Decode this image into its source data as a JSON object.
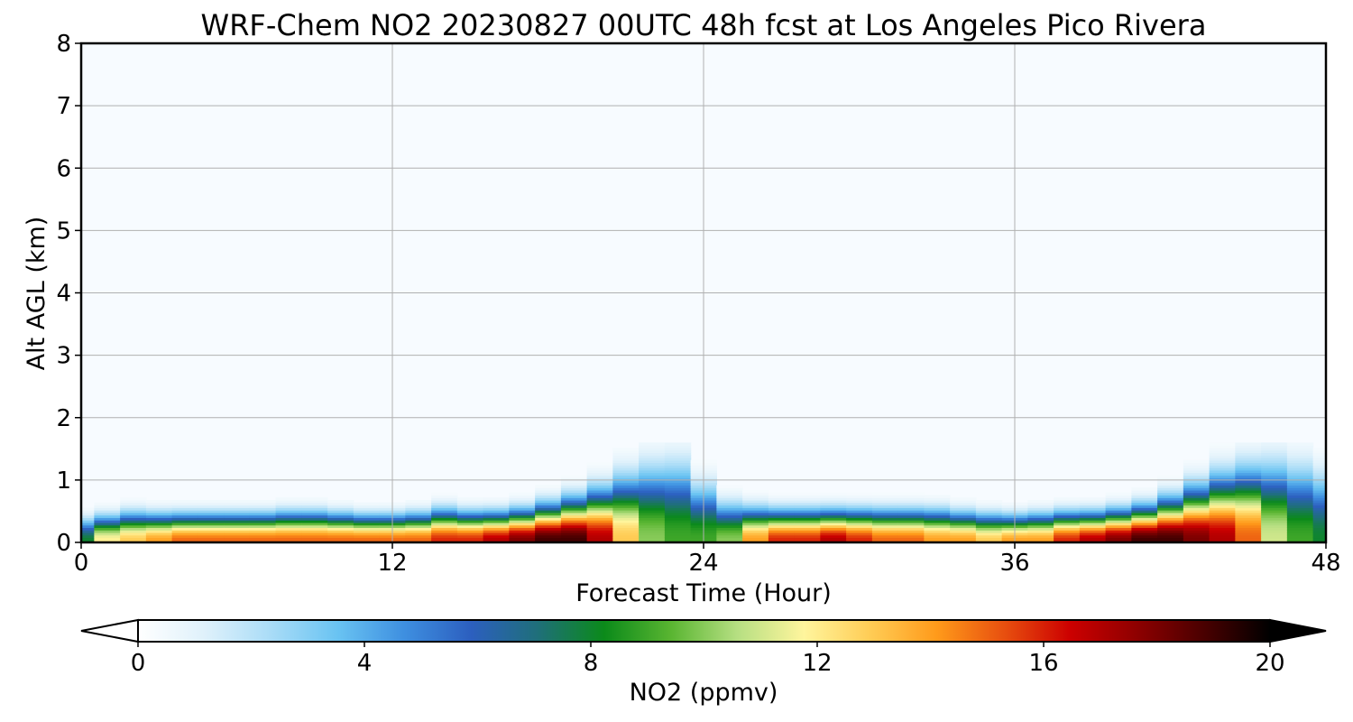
{
  "chart_data": {
    "type": "heatmap",
    "title": "WRF-Chem NO2  20230827 00UTC 48h fcst at Los Angeles Pico Rivera",
    "xlabel": "Forecast Time (Hour)",
    "ylabel": "Alt AGL (km)",
    "xlim": [
      0,
      48
    ],
    "ylim": [
      0,
      8
    ],
    "x_ticks": [
      "0",
      "12",
      "24",
      "36",
      "48"
    ],
    "y_ticks": [
      "0",
      "1",
      "2",
      "3",
      "4",
      "5",
      "6",
      "7",
      "8"
    ],
    "grid": true,
    "colorbar": {
      "label": "NO2  (ppmv)",
      "ticks": [
        "0",
        "4",
        "8",
        "12",
        "16",
        "20"
      ],
      "range": [
        0,
        20
      ],
      "extend": "both",
      "colors": [
        "#ffffff",
        "#dff1fb",
        "#a9dcf7",
        "#69c3f2",
        "#3e8fe0",
        "#2c5fbf",
        "#1f6f7a",
        "#0b8a1a",
        "#59b531",
        "#b6df82",
        "#fff59d",
        "#ffcc55",
        "#ff9a1a",
        "#e8500f",
        "#cc0000",
        "#8e0000",
        "#4a0000",
        "#000000"
      ],
      "over_color": "#000000",
      "under_color": "#ffffff"
    },
    "background_color": "#f7fbff",
    "hours": [
      0,
      1,
      2,
      3,
      4,
      5,
      6,
      7,
      8,
      9,
      10,
      11,
      12,
      13,
      14,
      15,
      16,
      17,
      18,
      19,
      20,
      21,
      22,
      23,
      24,
      25,
      26,
      27,
      28,
      29,
      30,
      31,
      32,
      33,
      34,
      35,
      36,
      37,
      38,
      39,
      40,
      41,
      42,
      43,
      44,
      45,
      46,
      47,
      48
    ],
    "surface_no2_ppmv": [
      8,
      12,
      13,
      14,
      15,
      15,
      15,
      15,
      15,
      15,
      15,
      15,
      15,
      15,
      16,
      16,
      17,
      18,
      19,
      19,
      17,
      13,
      10,
      9,
      9,
      10,
      14,
      16,
      16,
      17,
      16,
      15,
      15,
      14,
      14,
      13,
      14,
      14,
      16,
      17,
      18,
      19,
      19,
      18,
      17,
      15,
      11,
      9,
      8
    ],
    "mixing_height_km": [
      0.35,
      0.38,
      0.42,
      0.4,
      0.4,
      0.4,
      0.4,
      0.4,
      0.42,
      0.42,
      0.4,
      0.38,
      0.38,
      0.4,
      0.45,
      0.42,
      0.42,
      0.45,
      0.52,
      0.6,
      0.72,
      0.9,
      1.05,
      1.1,
      0.8,
      0.55,
      0.48,
      0.45,
      0.45,
      0.45,
      0.45,
      0.45,
      0.45,
      0.45,
      0.42,
      0.4,
      0.38,
      0.4,
      0.42,
      0.42,
      0.45,
      0.5,
      0.6,
      0.75,
      0.9,
      1.0,
      1.08,
      1.05,
      0.95
    ]
  }
}
